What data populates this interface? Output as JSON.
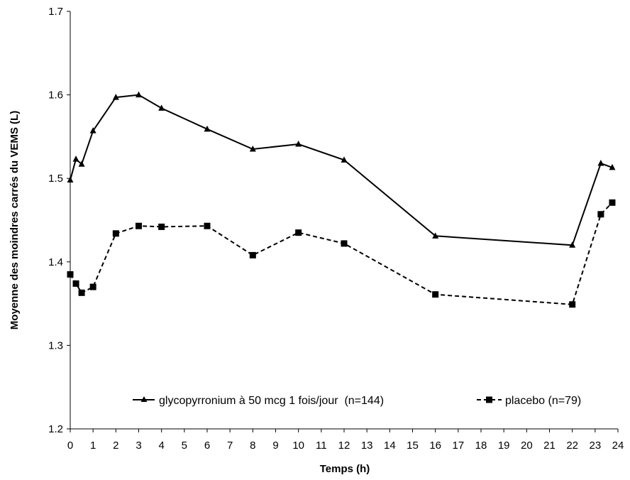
{
  "chart_data": {
    "type": "line",
    "xlabel": "Temps (h)",
    "ylabel": "Moyenne des moindres carrés du VEMS (L)",
    "xlim": [
      0,
      24
    ],
    "ylim": [
      1.2,
      1.7
    ],
    "xticks": [
      0,
      1,
      2,
      3,
      4,
      5,
      6,
      7,
      8,
      9,
      10,
      11,
      12,
      13,
      14,
      15,
      16,
      17,
      18,
      19,
      20,
      21,
      22,
      23,
      24
    ],
    "yticks": [
      "1.2",
      "1.3",
      "1.4",
      "1.5",
      "1.6",
      "1.7"
    ],
    "grid": false,
    "legend_position": "bottom",
    "series": [
      {
        "name": "glycopyrronium à 50 mcg 1 fois/jour  (n=144)",
        "marker": "triangle",
        "line_style": "solid",
        "color": "#000000",
        "x": [
          0,
          0.25,
          0.5,
          1,
          2,
          3,
          4,
          6,
          8,
          10,
          12,
          16,
          22,
          23.25,
          23.75
        ],
        "y": [
          1.498,
          1.523,
          1.517,
          1.557,
          1.597,
          1.6,
          1.584,
          1.559,
          1.535,
          1.541,
          1.522,
          1.431,
          1.42,
          1.518,
          1.513
        ]
      },
      {
        "name": "placebo (n=79)",
        "marker": "square",
        "line_style": "dashed",
        "color": "#000000",
        "x": [
          0,
          0.25,
          0.5,
          1,
          2,
          3,
          4,
          6,
          8,
          10,
          12,
          16,
          22,
          23.25,
          23.75
        ],
        "y": [
          1.385,
          1.374,
          1.363,
          1.37,
          1.434,
          1.443,
          1.442,
          1.443,
          1.408,
          1.435,
          1.422,
          1.361,
          1.349,
          1.457,
          1.471
        ]
      }
    ]
  }
}
